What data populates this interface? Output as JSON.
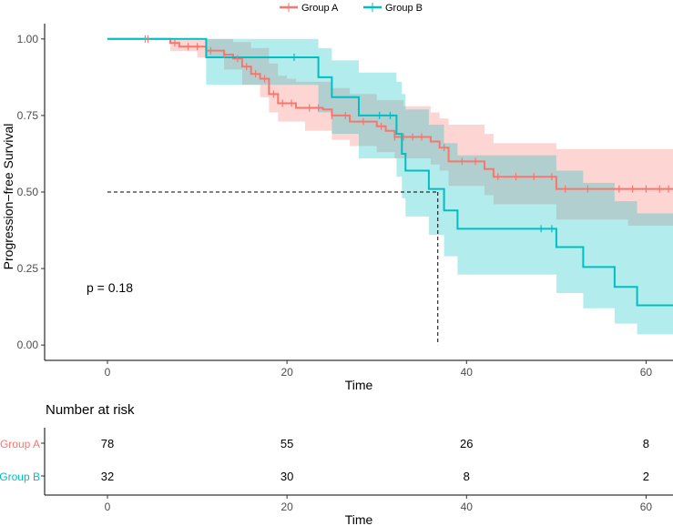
{
  "chart_data": {
    "type": "kaplan-meier",
    "legend": {
      "position": "top",
      "entries": [
        {
          "name": "Group A",
          "color": "#F8766D"
        },
        {
          "name": "Group B",
          "color": "#00BFC4"
        }
      ]
    },
    "xlabel": "Time",
    "ylabel": "Progression−free Survival",
    "xlim": [
      -7,
      63
    ],
    "ylim": [
      -0.05,
      1.05
    ],
    "x_ticks": [
      "0",
      "20",
      "40",
      "60"
    ],
    "y_ticks": [
      "0.00",
      "0.25",
      "0.50",
      "0.75",
      "1.00"
    ],
    "pvalue_label": "p = 0.18",
    "median_line": {
      "y": 0.5,
      "x": 36.8
    },
    "series": [
      {
        "name": "Group A",
        "color": "#F8766D",
        "steps": [
          [
            0,
            1.0
          ],
          [
            7,
            0.987
          ],
          [
            8,
            0.975
          ],
          [
            11,
            0.962
          ],
          [
            13,
            0.949
          ],
          [
            14,
            0.936
          ],
          [
            15,
            0.91
          ],
          [
            16,
            0.886
          ],
          [
            17,
            0.87
          ],
          [
            18,
            0.82
          ],
          [
            19,
            0.79
          ],
          [
            21,
            0.775
          ],
          [
            24,
            0.77
          ],
          [
            25,
            0.75
          ],
          [
            27,
            0.73
          ],
          [
            30,
            0.715
          ],
          [
            31,
            0.7
          ],
          [
            32,
            0.68
          ],
          [
            36,
            0.665
          ],
          [
            37,
            0.645
          ],
          [
            38,
            0.6
          ],
          [
            42,
            0.575
          ],
          [
            43,
            0.55
          ],
          [
            50,
            0.51
          ],
          [
            63,
            0.51
          ]
        ],
        "lower": [
          [
            0,
            1.0
          ],
          [
            7,
            0.96
          ],
          [
            10,
            0.94
          ],
          [
            13,
            0.9
          ],
          [
            15,
            0.85
          ],
          [
            17,
            0.81
          ],
          [
            18,
            0.76
          ],
          [
            19,
            0.73
          ],
          [
            22,
            0.7
          ],
          [
            25,
            0.67
          ],
          [
            27,
            0.65
          ],
          [
            30,
            0.63
          ],
          [
            32,
            0.61
          ],
          [
            36,
            0.59
          ],
          [
            37,
            0.57
          ],
          [
            38,
            0.52
          ],
          [
            42,
            0.49
          ],
          [
            43,
            0.46
          ],
          [
            50,
            0.41
          ],
          [
            58,
            0.39
          ],
          [
            63,
            0.39
          ]
        ],
        "upper": [
          [
            0,
            1.0
          ],
          [
            11,
            1.0
          ],
          [
            14,
            0.99
          ],
          [
            16,
            0.97
          ],
          [
            18,
            0.92
          ],
          [
            19,
            0.88
          ],
          [
            20,
            0.87
          ],
          [
            21,
            0.86
          ],
          [
            24,
            0.86
          ],
          [
            25,
            0.84
          ],
          [
            27,
            0.82
          ],
          [
            30,
            0.8
          ],
          [
            33,
            0.78
          ],
          [
            36,
            0.76
          ],
          [
            37,
            0.74
          ],
          [
            38,
            0.72
          ],
          [
            42,
            0.69
          ],
          [
            43,
            0.66
          ],
          [
            50,
            0.64
          ],
          [
            63,
            0.64
          ]
        ],
        "censor_x": [
          4.2,
          4.5,
          7.5,
          9,
          10,
          11.5,
          13,
          14.5,
          15.5,
          16.5,
          17.5,
          18.5,
          19.5,
          20.5,
          22.5,
          23.5,
          25,
          26.5,
          28.5,
          30.5,
          32,
          33,
          34,
          35,
          37.5,
          39.5,
          41,
          43.5,
          45.5,
          47.5,
          49.5,
          51,
          53.5,
          57,
          58.5,
          60,
          61.5,
          62.5
        ]
      },
      {
        "name": "Group B",
        "color": "#00BFC4",
        "steps": [
          [
            0,
            1.0
          ],
          [
            11,
            0.94
          ],
          [
            23.5,
            0.875
          ],
          [
            25,
            0.81
          ],
          [
            28,
            0.75
          ],
          [
            32.2,
            0.69
          ],
          [
            32.8,
            0.625
          ],
          [
            33.2,
            0.57
          ],
          [
            35.8,
            0.51
          ],
          [
            37.5,
            0.44
          ],
          [
            39,
            0.38
          ],
          [
            50,
            0.32
          ],
          [
            53,
            0.255
          ],
          [
            56.5,
            0.19
          ],
          [
            59,
            0.13
          ],
          [
            63,
            0.13
          ]
        ],
        "lower": [
          [
            0,
            1.0
          ],
          [
            11,
            0.85
          ],
          [
            23.5,
            0.76
          ],
          [
            25,
            0.69
          ],
          [
            28,
            0.61
          ],
          [
            32.2,
            0.55
          ],
          [
            32.8,
            0.48
          ],
          [
            33.2,
            0.42
          ],
          [
            35.8,
            0.36
          ],
          [
            37.5,
            0.29
          ],
          [
            39,
            0.23
          ],
          [
            50,
            0.17
          ],
          [
            53,
            0.12
          ],
          [
            56.5,
            0.07
          ],
          [
            59,
            0.035
          ],
          [
            63,
            0.035
          ]
        ],
        "upper": [
          [
            0,
            1.0
          ],
          [
            11,
            1.0
          ],
          [
            18,
            1.0
          ],
          [
            23.5,
            0.97
          ],
          [
            25,
            0.93
          ],
          [
            28,
            0.89
          ],
          [
            32.2,
            0.86
          ],
          [
            32.8,
            0.82
          ],
          [
            33.2,
            0.77
          ],
          [
            35.8,
            0.72
          ],
          [
            37.5,
            0.66
          ],
          [
            39,
            0.62
          ],
          [
            50,
            0.57
          ],
          [
            53,
            0.53
          ],
          [
            56.5,
            0.47
          ],
          [
            59,
            0.43
          ],
          [
            63,
            0.43
          ]
        ],
        "censor_x": [
          20.8,
          30.3,
          31.5,
          48.3,
          49.5
        ]
      }
    ],
    "risk_table": {
      "title": "Number at risk",
      "xlabel": "Time",
      "rows": [
        {
          "label": "Group A",
          "color": "#F8766D",
          "values": [
            "78",
            "55",
            "26",
            "8"
          ]
        },
        {
          "label": "Group B",
          "color": "#00BFC4",
          "values": [
            "32",
            "30",
            "8",
            "2"
          ]
        }
      ]
    }
  }
}
